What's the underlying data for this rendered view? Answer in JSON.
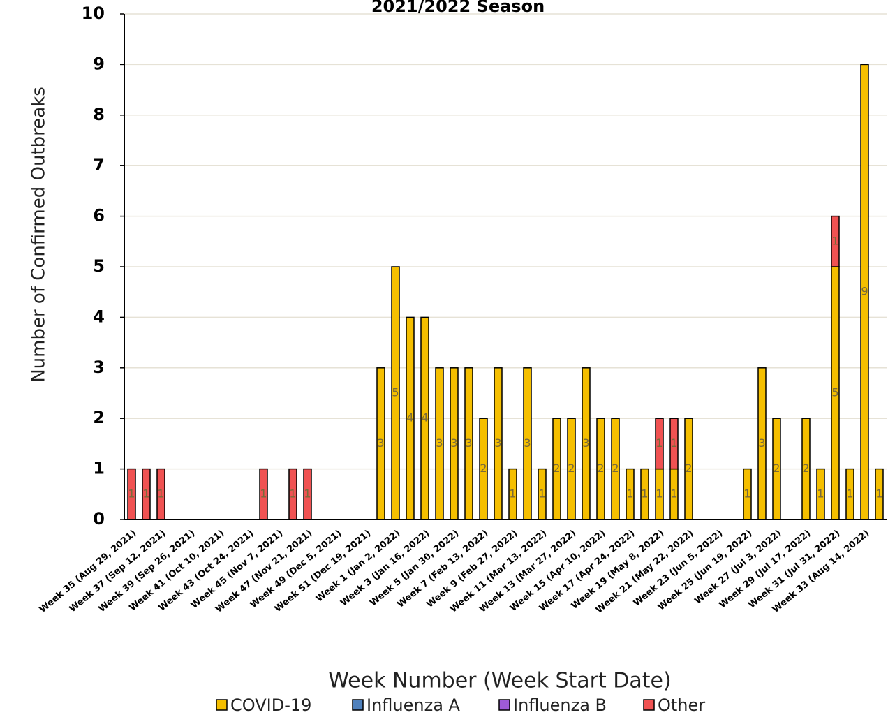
{
  "chart_data": {
    "type": "stacked-bar",
    "title": "2021/2022 Season",
    "x_label": "Week Number (Week Start Date)",
    "y_label": "Number of Confirmed Outbreaks",
    "categories": [
      "Week 35 (Aug 29, 2021)",
      null,
      "Week 37 (Sep 12, 2021)",
      null,
      "Week 39 (Sep 26, 2021)",
      null,
      "Week 41 (Oct 10, 2021)",
      null,
      "Week 43 (Oct 24, 2021)",
      null,
      "Week 45 (Nov 7, 2021)",
      null,
      "Week 47 (Nov 21, 2021)",
      null,
      "Week 49 (Dec 5, 2021)",
      null,
      "Week 51 (Dec 19, 2021)",
      null,
      "Week 1 (Jan 2, 2022)",
      null,
      "Week 3 (Jan 16, 2022)",
      null,
      "Week 5 (Jan 30, 2022)",
      null,
      "Week 7 (Feb 13, 2022)",
      null,
      "Week 9 (Feb 27, 2022)",
      null,
      "Week 11 (Mar 13, 2022)",
      null,
      "Week 13 (Mar 27, 2022)",
      null,
      "Week 15 (Apr 10, 2022)",
      null,
      "Week 17 (Apr 24, 2022)",
      null,
      "Week 19 (May 8, 2022)",
      null,
      "Week 21 (May 22, 2022)",
      null,
      "Week 23 (Jun 5, 2022)",
      null,
      "Week 25 (Jun 19, 2022)",
      null,
      "Week 27 (Jul 3, 2022)",
      null,
      "Week 29 (Jul 17, 2022)",
      null,
      "Week 31 (Jul 31, 2022)",
      null,
      "Week 33 (Aug 14, 2022)",
      null
    ],
    "series": [
      {
        "name": "COVID-19",
        "color": "#f5bf00",
        "values": [
          0,
          0,
          0,
          0,
          0,
          0,
          0,
          0,
          0,
          0,
          0,
          0,
          0,
          0,
          0,
          0,
          0,
          3,
          5,
          4,
          4,
          3,
          3,
          3,
          2,
          3,
          1,
          3,
          1,
          2,
          2,
          3,
          2,
          2,
          1,
          1,
          1,
          1,
          2,
          0,
          0,
          0,
          1,
          3,
          2,
          0,
          2,
          1,
          5,
          1,
          9,
          1
        ]
      },
      {
        "name": "Influenza A",
        "color": "#4f81bd",
        "values": [
          0,
          0,
          0,
          0,
          0,
          0,
          0,
          0,
          0,
          0,
          0,
          0,
          0,
          0,
          0,
          0,
          0,
          0,
          0,
          0,
          0,
          0,
          0,
          0,
          0,
          0,
          0,
          0,
          0,
          0,
          0,
          0,
          0,
          0,
          0,
          0,
          0,
          0,
          0,
          0,
          0,
          0,
          0,
          0,
          0,
          0,
          0,
          0,
          0,
          0,
          0,
          0
        ]
      },
      {
        "name": "Influenza B",
        "color": "#9e5ad6",
        "values": [
          0,
          0,
          0,
          0,
          0,
          0,
          0,
          0,
          0,
          0,
          0,
          0,
          0,
          0,
          0,
          0,
          0,
          0,
          0,
          0,
          0,
          0,
          0,
          0,
          0,
          0,
          0,
          0,
          0,
          0,
          0,
          0,
          0,
          0,
          0,
          0,
          0,
          0,
          0,
          0,
          0,
          0,
          0,
          0,
          0,
          0,
          0,
          0,
          0,
          0,
          0,
          0
        ]
      },
      {
        "name": "Other",
        "color": "#f05252",
        "values": [
          1,
          1,
          1,
          0,
          0,
          0,
          0,
          0,
          0,
          1,
          0,
          1,
          1,
          0,
          0,
          0,
          0,
          0,
          0,
          0,
          0,
          0,
          0,
          0,
          0,
          0,
          0,
          0,
          0,
          0,
          0,
          0,
          0,
          0,
          0,
          0,
          1,
          1,
          0,
          0,
          0,
          0,
          0,
          0,
          0,
          0,
          0,
          0,
          1,
          0,
          0,
          0
        ]
      }
    ],
    "ylim": [
      0,
      10
    ],
    "yticks": [
      0,
      1,
      2,
      3,
      4,
      5,
      6,
      7,
      8,
      9,
      10
    ],
    "grid": true,
    "legend": "bottom"
  }
}
